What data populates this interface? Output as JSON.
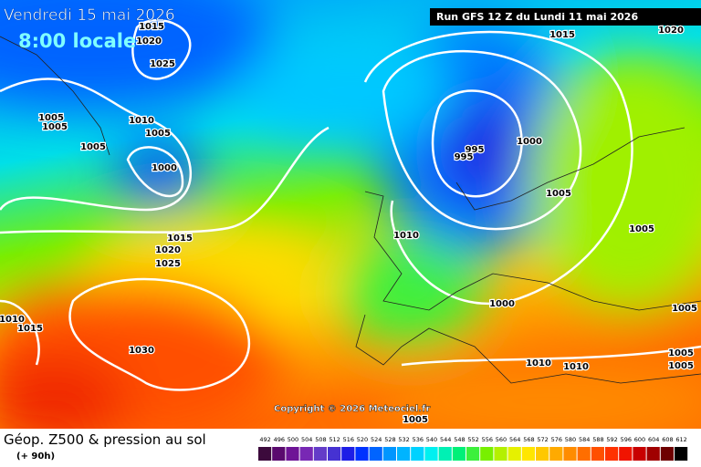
{
  "header": {
    "date": "Vendredi 15 mai 2026",
    "time": "8:00 locale",
    "run": "Run GFS 12 Z du Lundi 11 mai 2026"
  },
  "copyright": "Copyright © 2026 Meteociel.fr",
  "footer": {
    "title": "Géop. Z500 & pression au sol",
    "lead": "(+ 90h)"
  },
  "isobars": [
    "1015",
    "1020",
    "1025",
    "1005",
    "1005",
    "1005",
    "1010",
    "1005",
    "1000",
    "1015",
    "1020",
    "1025",
    "1010",
    "1015",
    "1030",
    "1010",
    "1015",
    "1020",
    "995",
    "995",
    "1000",
    "1005",
    "1005",
    "1005",
    "1000",
    "1005",
    "1005",
    "1010",
    "1010",
    "1005"
  ],
  "legend": [
    {
      "value": 492,
      "color": "#3c0a3c"
    },
    {
      "value": 496,
      "color": "#5a0a6e"
    },
    {
      "value": 500,
      "color": "#6e1496"
    },
    {
      "value": 504,
      "color": "#7828b4"
    },
    {
      "value": 508,
      "color": "#643cc8"
    },
    {
      "value": 512,
      "color": "#4632d2"
    },
    {
      "value": 516,
      "color": "#1e1ee6"
    },
    {
      "value": 520,
      "color": "#0032ff"
    },
    {
      "value": 524,
      "color": "#0064ff"
    },
    {
      "value": 528,
      "color": "#0096ff"
    },
    {
      "value": 532,
      "color": "#00b4ff"
    },
    {
      "value": 536,
      "color": "#00d2ff"
    },
    {
      "value": 540,
      "color": "#00f0f0"
    },
    {
      "value": 544,
      "color": "#00f0b4"
    },
    {
      "value": 548,
      "color": "#00f078"
    },
    {
      "value": 552,
      "color": "#3cf03c"
    },
    {
      "value": 556,
      "color": "#78f000"
    },
    {
      "value": 560,
      "color": "#b4f000"
    },
    {
      "value": 564,
      "color": "#e6f000"
    },
    {
      "value": 568,
      "color": "#ffe600"
    },
    {
      "value": 572,
      "color": "#ffc800"
    },
    {
      "value": 576,
      "color": "#ffaa00"
    },
    {
      "value": 580,
      "color": "#ff8c00"
    },
    {
      "value": 584,
      "color": "#ff6e00"
    },
    {
      "value": 588,
      "color": "#ff5000"
    },
    {
      "value": 592,
      "color": "#ff3200"
    },
    {
      "value": 596,
      "color": "#f01400"
    },
    {
      "value": 600,
      "color": "#c80000"
    },
    {
      "value": 604,
      "color": "#a00000"
    },
    {
      "value": 608,
      "color": "#6e0000"
    },
    {
      "value": 612,
      "color": "#000000"
    }
  ]
}
